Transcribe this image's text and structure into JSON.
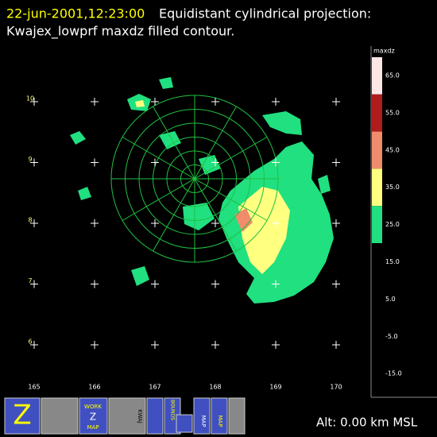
{
  "header": {
    "time": "22-jun-2001,12:23:00",
    "title_line1": "Equidistant cylindrical projection:",
    "title_line2": "Kwajex_lowprf maxdz filled contour."
  },
  "map": {
    "lon_labels": [
      "165",
      "166",
      "167",
      "168",
      "169",
      "170"
    ],
    "lat_labels": [
      "10",
      "9",
      "8",
      "7",
      "6"
    ]
  },
  "colorbar": {
    "title": "maxdz",
    "labels": [
      "65.0",
      "55.0",
      "45.0",
      "35.0",
      "25.0",
      "15.0",
      "5.0",
      "-5.0",
      "-15.0"
    ],
    "colors": [
      "#ffe6e6",
      "#b01c1c",
      "#f08c6c",
      "#ffff80",
      "#20e080"
    ]
  },
  "status": "Alt: 0.00 km MSL",
  "toolbar": {
    "work": "WORK",
    "z": "Z",
    "map": "MAP",
    "kwaj": "KWAJ",
    "bounds": "BOUNDS",
    "map2": "MAP",
    "map3": "MAP"
  }
}
